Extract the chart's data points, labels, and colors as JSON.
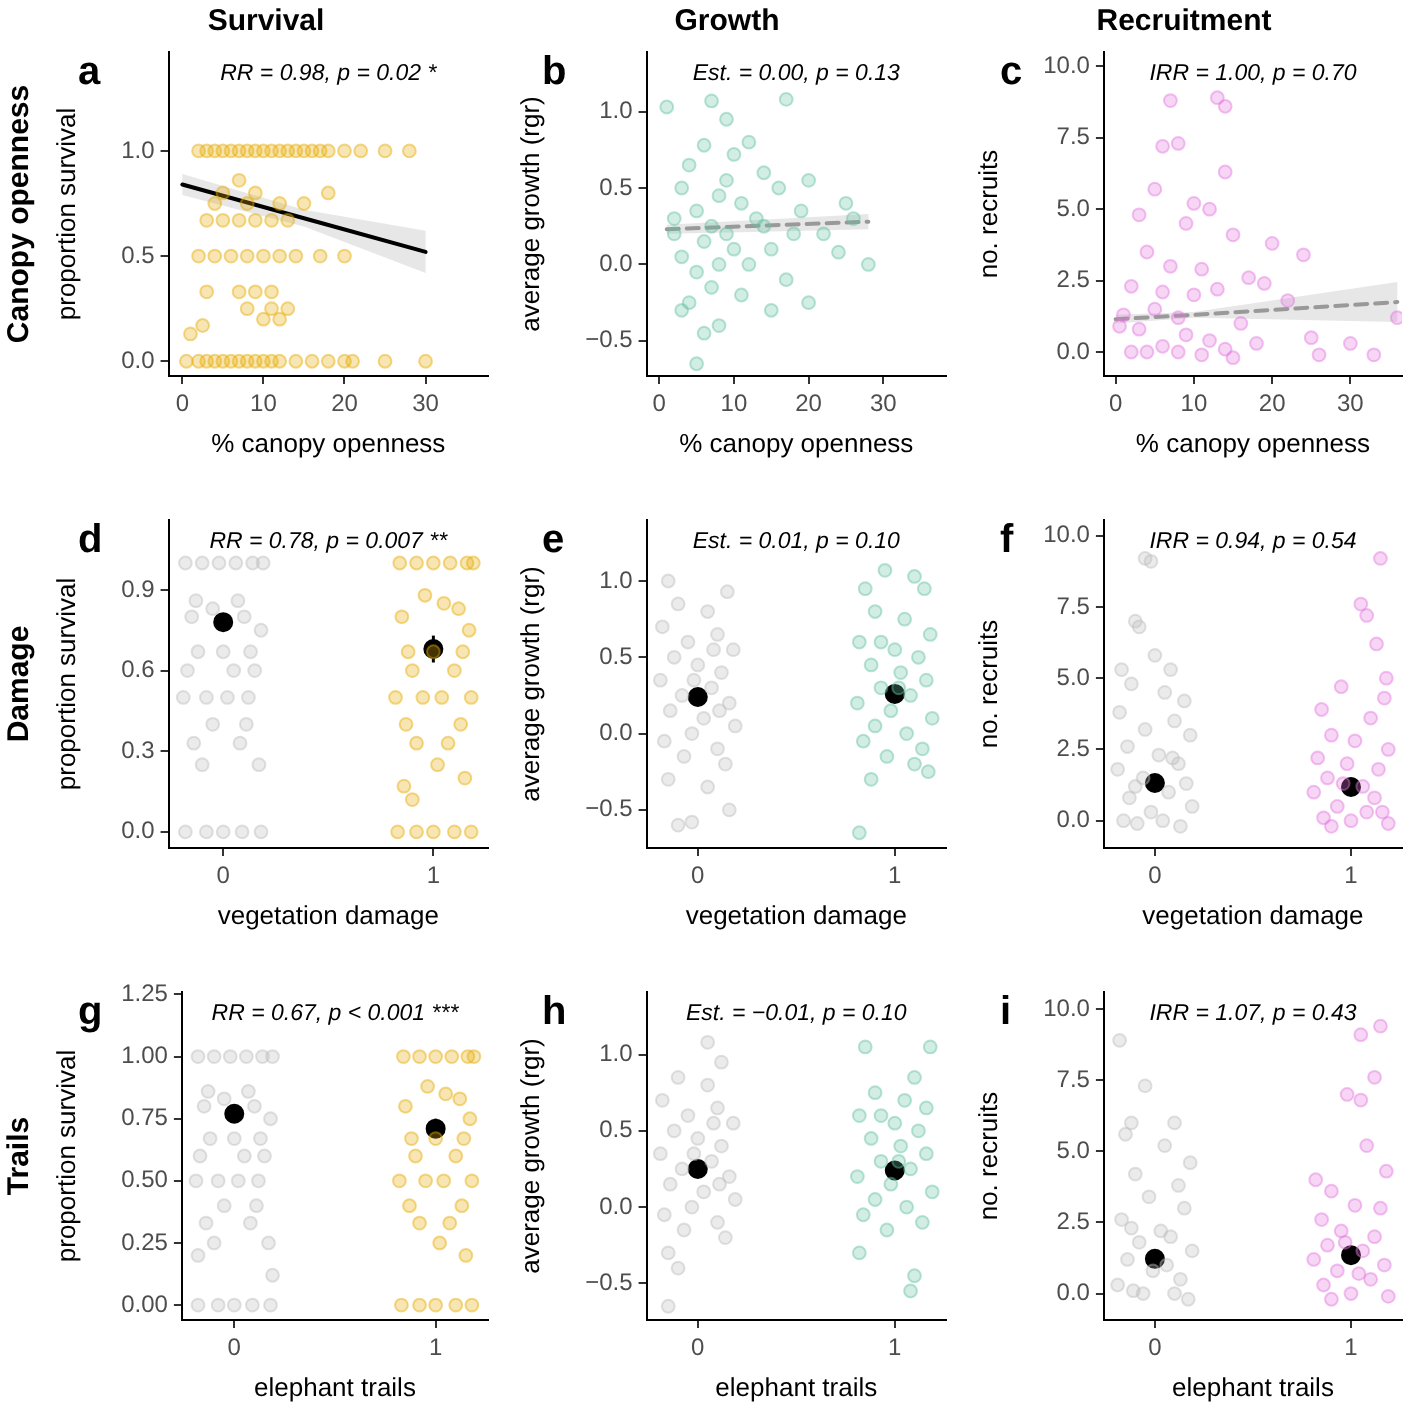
{
  "chart_data": [
    {
      "type": "scatter",
      "title": "Survival",
      "subtitle": "RR = 0.98, p = 0.02 *",
      "xlabel": "% canopy openness",
      "ylabel": "proportion survival",
      "annotations": [
        "a",
        "Canopy openness"
      ],
      "marker": "circle",
      "grid": false,
      "xlim": [
        -1.7,
        37.7
      ],
      "xticks": [
        0,
        10,
        20,
        30
      ],
      "ylim": [
        -0.07,
        1.47
      ],
      "yticks": [
        {
          "value": 0,
          "label": "0.0"
        },
        0.5,
        {
          "value": 1,
          "label": "1.0"
        }
      ],
      "series": [
        {
          "type": "scatter",
          "color": "#e6ab02",
          "x": [
            2,
            3,
            4,
            5,
            6,
            7,
            8,
            9,
            10,
            11,
            12,
            13,
            14,
            15,
            16,
            17,
            18,
            20,
            22,
            25,
            28,
            0.5,
            2,
            3,
            4,
            5,
            6,
            7,
            8,
            9,
            10,
            11,
            12,
            14,
            16,
            18,
            20,
            21,
            25,
            30,
            2,
            4,
            6,
            8,
            10,
            12,
            14,
            17,
            20,
            3,
            5,
            7,
            9,
            11,
            13,
            4,
            8,
            12,
            15,
            5,
            9,
            18,
            3,
            7,
            9,
            11,
            8,
            11,
            13,
            10,
            12,
            1,
            2.5,
            7
          ],
          "values": [
            1,
            1,
            1,
            1,
            1,
            1,
            1,
            1,
            1,
            1,
            1,
            1,
            1,
            1,
            1,
            1,
            1,
            1,
            1,
            1,
            1,
            0,
            0,
            0,
            0,
            0,
            0,
            0,
            0,
            0,
            0,
            0,
            0,
            0,
            0,
            0,
            0,
            0,
            0,
            0,
            0.5,
            0.5,
            0.5,
            0.5,
            0.5,
            0.5,
            0.5,
            0.5,
            0.5,
            0.67,
            0.67,
            0.67,
            0.67,
            0.67,
            0.67,
            0.75,
            0.75,
            0.75,
            0.75,
            0.8,
            0.8,
            0.8,
            0.33,
            0.33,
            0.33,
            0.33,
            0.25,
            0.25,
            0.25,
            0.2,
            0.2,
            0.13,
            0.17,
            0.86
          ]
        },
        {
          "type": "line",
          "color": "#000000",
          "marker": "none",
          "line_style": "solid",
          "x": [
            0,
            15,
            30
          ],
          "values": [
            0.84,
            0.68,
            0.52
          ],
          "lower": [
            0.79,
            0.64,
            0.42
          ],
          "upper": [
            0.89,
            0.72,
            0.62
          ]
        }
      ]
    },
    {
      "type": "scatter",
      "title": "Growth",
      "subtitle": "Est. = 0.00, p = 0.13",
      "xlabel": "% canopy openness",
      "ylabel": "average growth (rgr)",
      "annotations": [
        "b"
      ],
      "marker": "circle",
      "grid": false,
      "xlim": [
        -1.7,
        38.4
      ],
      "xticks": [
        0,
        10,
        20,
        30
      ],
      "ylim": [
        -0.73,
        1.39
      ],
      "yticks": [
        {
          "value": -0.5,
          "label": "−0.5"
        },
        {
          "value": 0,
          "label": "0.0"
        },
        0.5,
        {
          "value": 1,
          "label": "1.0"
        }
      ],
      "series": [
        {
          "type": "scatter",
          "color": "#66c2a5",
          "x": [
            1,
            7,
            9,
            17,
            12,
            6,
            10,
            4,
            14,
            20,
            16,
            3,
            8,
            11,
            25,
            5,
            13,
            2,
            7,
            9,
            18,
            22,
            6,
            10,
            15,
            3,
            24,
            8,
            12,
            28,
            5,
            17,
            7,
            11,
            4,
            20,
            15,
            3,
            8,
            6,
            5,
            9,
            2,
            14,
            26,
            19
          ],
          "values": [
            1.03,
            1.07,
            0.95,
            1.08,
            0.8,
            0.78,
            0.72,
            0.65,
            0.6,
            0.55,
            0.5,
            0.5,
            0.45,
            0.4,
            0.4,
            0.35,
            0.3,
            0.3,
            0.25,
            0.2,
            0.2,
            0.2,
            0.15,
            0.1,
            0.1,
            0.05,
            0.08,
            0,
            0,
            0,
            -0.05,
            -0.1,
            -0.15,
            -0.2,
            -0.25,
            -0.25,
            -0.3,
            -0.3,
            -0.4,
            -0.45,
            -0.65,
            0.55,
            0.2,
            0.25,
            0.3,
            0.35
          ]
        },
        {
          "type": "line",
          "color": "#999999",
          "marker": "none",
          "line_style": "dashed",
          "x": [
            1,
            28
          ],
          "values": [
            0.23,
            0.28
          ],
          "lower": [
            0.2,
            0.23
          ],
          "upper": [
            0.26,
            0.33
          ]
        }
      ]
    },
    {
      "type": "scatter",
      "title": "Recruitment",
      "subtitle": "IRR = 1.00, p = 0.70",
      "xlabel": "% canopy openness",
      "ylabel": "no. recruits",
      "annotations": [
        "c"
      ],
      "marker": "circle",
      "grid": false,
      "xlim": [
        -1.5,
        36.6
      ],
      "xticks": [
        0,
        10,
        20,
        30
      ],
      "ylim": [
        -0.84,
        10.5
      ],
      "yticks": [
        {
          "value": 0,
          "label": "0.0"
        },
        2.5,
        {
          "value": 5,
          "label": "5.0"
        },
        7.5,
        {
          "value": 10,
          "label": "10.0"
        }
      ],
      "series": [
        {
          "type": "scatter",
          "color": "#e377dd",
          "x": [
            7,
            13,
            14,
            14,
            6,
            8,
            5,
            10,
            12,
            3,
            9,
            15,
            20,
            4,
            7,
            11,
            17,
            2,
            6,
            10,
            13,
            22,
            5,
            8,
            16,
            1,
            3,
            9,
            12,
            6,
            4,
            8,
            11,
            14,
            18,
            25,
            26,
            30,
            33,
            36,
            2,
            15,
            19,
            24,
            0.5
          ],
          "values": [
            8.8,
            8.9,
            8.6,
            6.3,
            7.2,
            7.3,
            5.7,
            5.2,
            5,
            4.8,
            4.5,
            4.1,
            3.8,
            3.5,
            3,
            2.9,
            2.6,
            2.3,
            2.1,
            2,
            2.2,
            1.8,
            1.5,
            1.2,
            1,
            1.3,
            0.8,
            0.6,
            0.4,
            0.2,
            0,
            0,
            -0.1,
            0.1,
            0.3,
            0.5,
            -0.1,
            0.3,
            -0.1,
            1.2,
            0,
            -0.2,
            2.4,
            3.4,
            0.9
          ]
        },
        {
          "type": "line",
          "color": "#999999",
          "marker": "none",
          "line_style": "dashed",
          "x": [
            0,
            10,
            36
          ],
          "values": [
            1.15,
            1.3,
            1.75
          ],
          "lower": [
            1,
            1.2,
            1.05
          ],
          "upper": [
            1.3,
            1.4,
            2.45
          ]
        }
      ]
    },
    {
      "type": "scatter",
      "subtitle": "RR = 0.78, p = 0.007 **",
      "xlabel": "vegetation damage",
      "ylabel": "proportion survival",
      "annotations": [
        "d",
        "Damage"
      ],
      "marker": "circle",
      "grid": false,
      "xlim": [
        -0.26,
        1.26
      ],
      "xticks": [
        0,
        1
      ],
      "ylim": [
        -0.06,
        1.16
      ],
      "yticks": [
        {
          "value": 0,
          "label": "0.0"
        },
        0.3,
        0.6,
        0.9
      ],
      "series": [
        {
          "type": "scatter",
          "color": "#bdbdbd",
          "x": [
            -0.18,
            -0.1,
            -0.02,
            0.06,
            0.14,
            0.19,
            -0.15,
            -0.05,
            0.1,
            0.18,
            -0.12,
            0,
            0.13,
            -0.17,
            0.05,
            0.15,
            -0.08,
            0.02,
            0.12,
            -0.19,
            -0.05,
            0.11,
            -0.14,
            0.08,
            -0.1,
            0.17,
            -0.18,
            -0.08,
            0,
            0.09,
            0.18,
            -0.13,
            0.07
          ],
          "values": [
            1,
            1,
            1,
            1,
            1,
            1,
            0.8,
            0.83,
            0.8,
            0.75,
            0.67,
            0.67,
            0.67,
            0.6,
            0.6,
            0.6,
            0.5,
            0.5,
            0.5,
            0.5,
            0.4,
            0.4,
            0.33,
            0.33,
            0.25,
            0.25,
            0,
            0,
            0,
            0,
            0,
            0.86,
            0.86
          ]
        },
        {
          "type": "scatter",
          "color": "#e6ab02",
          "x": [
            0.84,
            0.92,
            1,
            1.08,
            1.16,
            1.19,
            0.85,
            1.05,
            1.12,
            0.88,
            1,
            1.14,
            0.9,
            1.1,
            0.82,
            0.95,
            1.04,
            1.18,
            0.87,
            1.13,
            0.92,
            1.07,
            1.02,
            1.15,
            0.86,
            0.9,
            0.83,
            0.92,
            1,
            1.1,
            1.18,
            0.96,
            1.17
          ],
          "values": [
            1,
            1,
            1,
            1,
            1,
            1,
            0.8,
            0.85,
            0.83,
            0.67,
            0.67,
            0.67,
            0.6,
            0.6,
            0.5,
            0.5,
            0.5,
            0.5,
            0.4,
            0.4,
            0.33,
            0.33,
            0.25,
            0.2,
            0.17,
            0.12,
            0,
            0,
            0,
            0,
            0,
            0.88,
            0.75
          ]
        },
        {
          "type": "scatter",
          "color": "#000000",
          "x": [
            0,
            1
          ],
          "values": [
            0.78,
            0.68
          ],
          "errors": [
            [
              0.75,
              0.81
            ],
            [
              0.63,
              0.73
            ]
          ]
        }
      ]
    },
    {
      "type": "scatter",
      "subtitle": "Est. = 0.01, p = 0.10",
      "xlabel": "vegetation damage",
      "ylabel": "average growth (rgr)",
      "annotations": [
        "e"
      ],
      "marker": "circle",
      "grid": false,
      "xlim": [
        -0.26,
        1.26
      ],
      "xticks": [
        0,
        1
      ],
      "ylim": [
        -0.75,
        1.4
      ],
      "yticks": [
        {
          "value": -0.5,
          "label": "−0.5"
        },
        {
          "value": 0,
          "label": "0.0"
        },
        0.5,
        {
          "value": 1,
          "label": "1.0"
        }
      ],
      "series": [
        {
          "type": "scatter",
          "color": "#bdbdbd",
          "x": [
            -0.15,
            0.15,
            -0.1,
            0.05,
            -0.18,
            0.1,
            -0.05,
            0.18,
            -0.12,
            0,
            0.12,
            -0.19,
            0.07,
            -0.08,
            0.16,
            -0.14,
            0.03,
            0.19,
            -0.03,
            -0.17,
            0.1,
            -0.07,
            0.14,
            -0.15,
            0.05,
            -0.1,
            -0.03,
            0.16,
            0.08,
            -0.02,
            0.11
          ],
          "values": [
            1,
            0.93,
            0.85,
            0.8,
            0.7,
            0.65,
            0.6,
            0.55,
            0.5,
            0.45,
            0.4,
            0.35,
            0.3,
            0.25,
            0.2,
            0.15,
            0.1,
            0.05,
            0,
            -0.05,
            -0.1,
            -0.15,
            -0.2,
            -0.3,
            -0.35,
            -0.6,
            -0.58,
            -0.5,
            0.55,
            0.35,
            0.15
          ]
        },
        {
          "type": "scatter",
          "color": "#66c2a5",
          "x": [
            0.85,
            0.95,
            1.1,
            1.15,
            0.9,
            1.05,
            1.18,
            0.82,
            1,
            1.12,
            0.88,
            1.03,
            1.16,
            0.93,
            1.08,
            0.81,
            0.98,
            1.19,
            0.9,
            1.06,
            0.84,
            1.14,
            0.96,
            1.1,
            0.88,
            1.17,
            0.82,
            1.02,
            0.93
          ],
          "values": [
            0.95,
            1.07,
            1.03,
            0.95,
            0.8,
            0.75,
            0.65,
            0.6,
            0.55,
            0.5,
            0.45,
            0.4,
            0.35,
            0.3,
            0.25,
            0.2,
            0.15,
            0.1,
            0.05,
            0,
            -0.05,
            -0.1,
            -0.15,
            -0.2,
            -0.3,
            -0.25,
            -0.65,
            0.3,
            0.6
          ]
        },
        {
          "type": "scatter",
          "color": "#000000",
          "x": [
            0,
            1
          ],
          "values": [
            0.24,
            0.26
          ],
          "errors": [
            0.01,
            0.01
          ]
        }
      ]
    },
    {
      "type": "scatter",
      "subtitle": "IRR = 0.94, p = 0.54",
      "xlabel": "vegetation damage",
      "ylabel": "no. recruits",
      "annotations": [
        "f"
      ],
      "marker": "circle",
      "grid": false,
      "xlim": [
        -0.26,
        1.26
      ],
      "xticks": [
        0,
        1
      ],
      "ylim": [
        -0.96,
        10.55
      ],
      "yticks": [
        {
          "value": 0,
          "label": "0.0"
        },
        2.5,
        {
          "value": 5,
          "label": "5.0"
        },
        7.5,
        {
          "value": 10,
          "label": "10.0"
        }
      ],
      "series": [
        {
          "type": "scatter",
          "color": "#bdbdbd",
          "x": [
            -0.05,
            -0.02,
            -0.1,
            -0.08,
            0,
            -0.17,
            0.08,
            -0.12,
            0.05,
            0.15,
            -0.18,
            0.1,
            -0.05,
            0.18,
            -0.14,
            0.02,
            0.12,
            -0.19,
            -0.06,
            0.16,
            0.07,
            -0.13,
            0.19,
            -0.02,
            -0.16,
            0.04,
            0.13,
            -0.09,
            0.09,
            -0.1
          ],
          "values": [
            9.2,
            9.1,
            7,
            6.8,
            5.8,
            5.3,
            5.3,
            4.8,
            4.5,
            4.2,
            3.8,
            3.5,
            3.2,
            3,
            2.6,
            2.3,
            2,
            1.8,
            1.5,
            1.3,
            1,
            0.8,
            0.5,
            0.3,
            0,
            0,
            -0.2,
            -0.1,
            2.2,
            1.2
          ]
        },
        {
          "type": "scatter",
          "color": "#e377dd",
          "x": [
            1.15,
            1.05,
            1.08,
            1.13,
            1.18,
            0.95,
            1.17,
            0.85,
            1.1,
            0.9,
            1.02,
            1.19,
            0.83,
            0.98,
            1.14,
            0.88,
            1.06,
            0.81,
            1.12,
            0.93,
            1.16,
            0.86,
            1,
            1.19,
            0.9,
            1.08,
            0.96
          ],
          "values": [
            9.2,
            7.6,
            7.2,
            6.2,
            5,
            4.7,
            4.3,
            3.9,
            3.6,
            3,
            2.8,
            2.5,
            2.2,
            2,
            1.8,
            1.5,
            1.2,
            1,
            0.8,
            0.5,
            0.3,
            0.1,
            0,
            -0.1,
            -0.2,
            0.3,
            1.3
          ]
        },
        {
          "type": "scatter",
          "color": "#000000",
          "x": [
            0,
            1
          ],
          "values": [
            1.32,
            1.18
          ],
          "errors": [
            0.1,
            0.1
          ]
        }
      ]
    },
    {
      "type": "scatter",
      "subtitle": "RR = 0.67, p < 0.001 ***",
      "xlabel": "elephant trails",
      "ylabel": "proportion survival",
      "annotations": [
        "g",
        "Trails"
      ],
      "marker": "circle",
      "grid": false,
      "xlim": [
        -0.26,
        1.26
      ],
      "xticks": [
        0,
        1
      ],
      "ylim": [
        -0.06,
        1.26
      ],
      "yticks": [
        {
          "value": 0,
          "label": "0.00"
        },
        0.25,
        {
          "value": 0.5,
          "label": "0.50"
        },
        0.75,
        {
          "value": 1,
          "label": "1.00"
        },
        1.25
      ],
      "series": [
        {
          "type": "scatter",
          "color": "#bdbdbd",
          "x": [
            -0.18,
            -0.1,
            -0.02,
            0.06,
            0.14,
            0.19,
            -0.15,
            -0.05,
            0.1,
            0.18,
            -0.12,
            0,
            0.13,
            -0.17,
            0.05,
            0.15,
            -0.08,
            0.02,
            0.12,
            -0.19,
            -0.05,
            0.11,
            -0.14,
            0.08,
            -0.1,
            0.17,
            -0.18,
            -0.08,
            0,
            0.09,
            0.18,
            -0.13,
            0.07,
            -0.18,
            0.19
          ],
          "values": [
            1,
            1,
            1,
            1,
            1,
            1,
            0.8,
            0.83,
            0.8,
            0.75,
            0.67,
            0.67,
            0.67,
            0.6,
            0.6,
            0.6,
            0.5,
            0.5,
            0.5,
            0.5,
            0.4,
            0.4,
            0.33,
            0.33,
            0.25,
            0.25,
            0,
            0,
            0,
            0,
            0,
            0.86,
            0.86,
            0.2,
            0.12
          ]
        },
        {
          "type": "scatter",
          "color": "#e6ab02",
          "x": [
            0.84,
            0.92,
            1,
            1.08,
            1.16,
            1.19,
            0.85,
            1.05,
            1.12,
            0.88,
            1,
            1.14,
            0.9,
            1.1,
            0.82,
            0.95,
            1.04,
            1.18,
            0.87,
            1.13,
            0.92,
            1.07,
            1.02,
            1.15,
            0.83,
            0.92,
            1,
            1.1,
            1.18,
            0.96,
            1.17
          ],
          "values": [
            1,
            1,
            1,
            1,
            1,
            1,
            0.8,
            0.85,
            0.83,
            0.67,
            0.67,
            0.67,
            0.6,
            0.6,
            0.5,
            0.5,
            0.5,
            0.5,
            0.4,
            0.4,
            0.33,
            0.33,
            0.25,
            0.2,
            0,
            0,
            0,
            0,
            0,
            0.88,
            0.75
          ]
        },
        {
          "type": "scatter",
          "color": "#000000",
          "x": [
            0,
            1
          ],
          "values": [
            0.77,
            0.71
          ],
          "errors": [
            [
              0.74,
              0.8
            ],
            [
              0.68,
              0.75
            ]
          ]
        }
      ]
    },
    {
      "type": "scatter",
      "subtitle": "Est. = −0.01, p = 0.10",
      "xlabel": "elephant trails",
      "ylabel": "average growth (rgr)",
      "annotations": [
        "h"
      ],
      "marker": "circle",
      "grid": false,
      "xlim": [
        -0.26,
        1.26
      ],
      "xticks": [
        0,
        1
      ],
      "ylim": [
        -0.74,
        1.41
      ],
      "yticks": [
        {
          "value": -0.5,
          "label": "−0.5"
        },
        {
          "value": 0,
          "label": "0.0"
        },
        0.5,
        {
          "value": 1,
          "label": "1.0"
        }
      ],
      "series": [
        {
          "type": "scatter",
          "color": "#bdbdbd",
          "x": [
            0.05,
            0.12,
            -0.1,
            0.05,
            -0.18,
            0.1,
            -0.05,
            0.18,
            -0.12,
            0,
            0.12,
            -0.19,
            0.07,
            -0.08,
            0.16,
            -0.14,
            0.03,
            0.19,
            -0.03,
            -0.17,
            0.1,
            -0.07,
            0.14,
            -0.15,
            -0.1,
            -0.15,
            0.08,
            -0.02,
            0.11
          ],
          "values": [
            1.08,
            0.95,
            0.85,
            0.8,
            0.7,
            0.65,
            0.6,
            0.55,
            0.5,
            0.45,
            0.4,
            0.35,
            0.3,
            0.25,
            0.2,
            0.15,
            0.1,
            0.05,
            0,
            -0.05,
            -0.1,
            -0.15,
            -0.2,
            -0.3,
            -0.4,
            -0.65,
            0.55,
            0.35,
            0.15
          ]
        },
        {
          "type": "scatter",
          "color": "#66c2a5",
          "x": [
            0.85,
            1.18,
            1.1,
            0.9,
            1.05,
            1.16,
            0.82,
            1,
            1.12,
            0.88,
            1.03,
            1.16,
            0.93,
            1.08,
            0.81,
            0.98,
            1.19,
            0.9,
            1.06,
            0.84,
            1.14,
            0.96,
            0.82,
            1.1,
            1.08,
            1.02,
            0.93
          ],
          "values": [
            1.05,
            1.05,
            0.85,
            0.75,
            0.7,
            0.65,
            0.6,
            0.55,
            0.5,
            0.45,
            0.4,
            0.35,
            0.3,
            0.25,
            0.2,
            0.15,
            0.1,
            0.05,
            0,
            -0.05,
            -0.1,
            -0.15,
            -0.3,
            -0.45,
            -0.55,
            0.3,
            0.6
          ]
        },
        {
          "type": "scatter",
          "color": "#000000",
          "x": [
            0,
            1
          ],
          "values": [
            0.25,
            0.24
          ],
          "errors": [
            0.01,
            0.01
          ]
        }
      ]
    },
    {
      "type": "scatter",
      "subtitle": "IRR = 1.07, p = 0.43",
      "xlabel": "elephant trails",
      "ylabel": "no. recruits",
      "annotations": [
        "i"
      ],
      "marker": "circle",
      "grid": false,
      "xlim": [
        -0.26,
        1.26
      ],
      "xticks": [
        0,
        1
      ],
      "ylim": [
        -0.93,
        10.6
      ],
      "yticks": [
        {
          "value": 0,
          "label": "0.0"
        },
        2.5,
        {
          "value": 5,
          "label": "5.0"
        },
        7.5,
        {
          "value": 10,
          "label": "10.0"
        }
      ],
      "series": [
        {
          "type": "scatter",
          "color": "#bdbdbd",
          "x": [
            -0.18,
            -0.05,
            -0.12,
            0.1,
            -0.15,
            0.05,
            0.18,
            -0.1,
            0.12,
            -0.03,
            0.15,
            -0.17,
            -0.12,
            0.08,
            -0.08,
            0.19,
            -0.14,
            0.06,
            -0.01,
            0.13,
            -0.19,
            0.1,
            -0.06,
            0.17,
            -0.11,
            0.03
          ],
          "values": [
            8.9,
            7.3,
            6,
            6,
            5.6,
            5.2,
            4.6,
            4.2,
            3.8,
            3.4,
            3,
            2.6,
            2.3,
            2,
            1.8,
            1.5,
            1.2,
            1,
            0.8,
            0.5,
            0.3,
            0,
            0,
            -0.2,
            0.1,
            2.2
          ]
        },
        {
          "type": "scatter",
          "color": "#e377dd",
          "x": [
            1.15,
            1.05,
            1.12,
            0.98,
            1.05,
            1.08,
            0.82,
            1.18,
            0.9,
            1.02,
            1.15,
            0.85,
            0.95,
            1.12,
            0.88,
            1.06,
            0.81,
            1.17,
            0.93,
            1.1,
            0.86,
            1,
            1.19,
            0.9,
            1.04,
            0.97
          ],
          "values": [
            9.4,
            9.1,
            7.6,
            7,
            6.8,
            5.2,
            4,
            4.3,
            3.6,
            3.1,
            3,
            2.6,
            2.2,
            2,
            1.7,
            1.5,
            1.2,
            1,
            0.8,
            0.5,
            0.3,
            0,
            -0.1,
            -0.2,
            0.7,
            1.8
          ]
        },
        {
          "type": "scatter",
          "color": "#000000",
          "x": [
            0,
            1
          ],
          "values": [
            1.22,
            1.35
          ],
          "errors": [
            0.1,
            0.1
          ]
        }
      ]
    }
  ]
}
